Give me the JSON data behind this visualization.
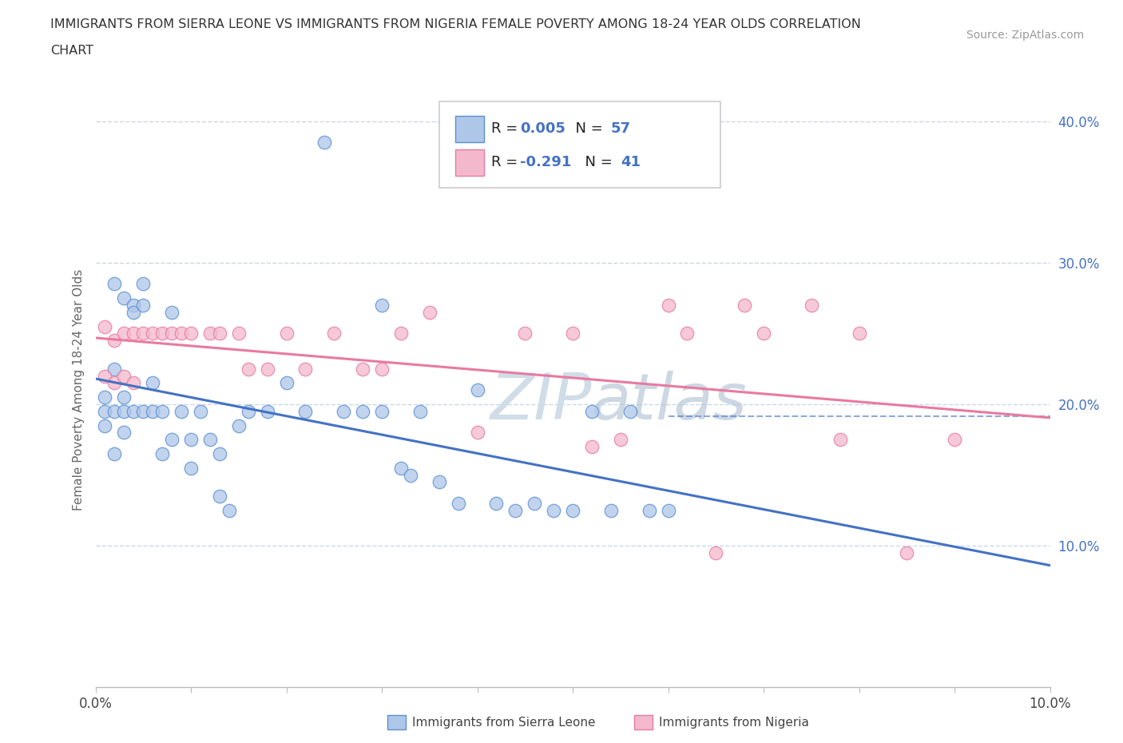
{
  "title_line1": "IMMIGRANTS FROM SIERRA LEONE VS IMMIGRANTS FROM NIGERIA FEMALE POVERTY AMONG 18-24 YEAR OLDS CORRELATION",
  "title_line2": "CHART",
  "source": "Source: ZipAtlas.com",
  "ylabel": "Female Poverty Among 18-24 Year Olds",
  "xlim": [
    0.0,
    0.1
  ],
  "ylim": [
    0.0,
    0.42
  ],
  "legend_sl_r": "0.005",
  "legend_sl_n": "57",
  "legend_ng_r": "-0.291",
  "legend_ng_n": "41",
  "legend_label_sl": "Immigrants from Sierra Leone",
  "legend_label_ng": "Immigrants from Nigeria",
  "sl_fill_color": "#aec6e8",
  "sl_edge_color": "#5b8fd4",
  "ng_fill_color": "#f4b8cc",
  "ng_edge_color": "#e87aa0",
  "sl_line_color": "#4472c4",
  "ng_line_color": "#e87aa0",
  "dashed_grid_color": "#c8d8ea",
  "watermark_color": "#d0dde8",
  "scatter_sl_x": [
    0.001,
    0.001,
    0.001,
    0.002,
    0.002,
    0.002,
    0.002,
    0.003,
    0.003,
    0.003,
    0.003,
    0.004,
    0.004,
    0.004,
    0.005,
    0.005,
    0.005,
    0.006,
    0.006,
    0.007,
    0.007,
    0.008,
    0.008,
    0.009,
    0.01,
    0.01,
    0.011,
    0.012,
    0.013,
    0.013,
    0.014,
    0.015,
    0.016,
    0.018,
    0.02,
    0.022,
    0.024,
    0.026,
    0.028,
    0.03,
    0.03,
    0.032,
    0.033,
    0.034,
    0.036,
    0.038,
    0.04,
    0.042,
    0.044,
    0.046,
    0.048,
    0.05,
    0.052,
    0.054,
    0.056,
    0.058,
    0.06
  ],
  "scatter_sl_y": [
    0.205,
    0.195,
    0.185,
    0.285,
    0.225,
    0.195,
    0.165,
    0.275,
    0.205,
    0.195,
    0.18,
    0.27,
    0.265,
    0.195,
    0.285,
    0.27,
    0.195,
    0.215,
    0.195,
    0.195,
    0.165,
    0.265,
    0.175,
    0.195,
    0.175,
    0.155,
    0.195,
    0.175,
    0.165,
    0.135,
    0.125,
    0.185,
    0.195,
    0.195,
    0.215,
    0.195,
    0.385,
    0.195,
    0.195,
    0.27,
    0.195,
    0.155,
    0.15,
    0.195,
    0.145,
    0.13,
    0.21,
    0.13,
    0.125,
    0.13,
    0.125,
    0.125,
    0.195,
    0.125,
    0.195,
    0.125,
    0.125
  ],
  "scatter_ng_x": [
    0.001,
    0.001,
    0.002,
    0.002,
    0.003,
    0.003,
    0.004,
    0.004,
    0.005,
    0.006,
    0.007,
    0.008,
    0.009,
    0.01,
    0.012,
    0.013,
    0.015,
    0.016,
    0.018,
    0.02,
    0.022,
    0.025,
    0.028,
    0.03,
    0.032,
    0.035,
    0.04,
    0.045,
    0.05,
    0.052,
    0.055,
    0.06,
    0.062,
    0.065,
    0.068,
    0.07,
    0.075,
    0.078,
    0.08,
    0.085,
    0.09
  ],
  "scatter_ng_y": [
    0.255,
    0.22,
    0.245,
    0.215,
    0.25,
    0.22,
    0.25,
    0.215,
    0.25,
    0.25,
    0.25,
    0.25,
    0.25,
    0.25,
    0.25,
    0.25,
    0.25,
    0.225,
    0.225,
    0.25,
    0.225,
    0.25,
    0.225,
    0.225,
    0.25,
    0.265,
    0.18,
    0.25,
    0.25,
    0.17,
    0.175,
    0.27,
    0.25,
    0.095,
    0.27,
    0.25,
    0.27,
    0.175,
    0.25,
    0.095,
    0.175
  ]
}
